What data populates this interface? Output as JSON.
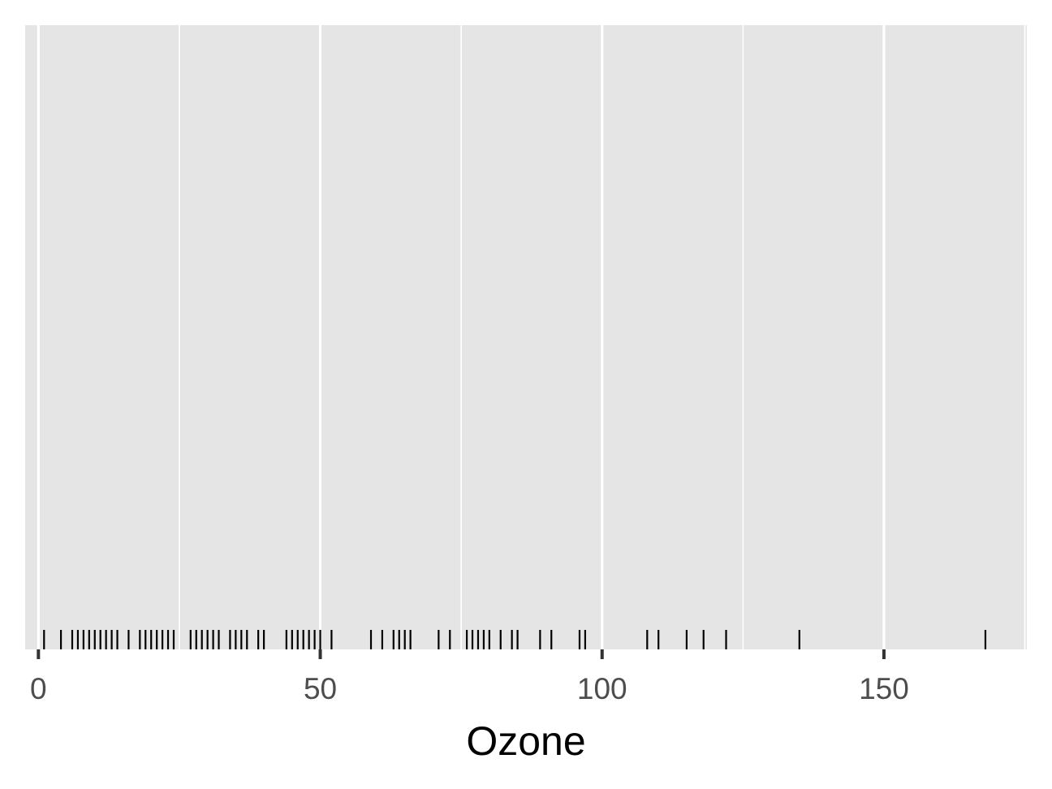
{
  "chart_data": {
    "type": "rug",
    "title": "",
    "xlabel": "Ozone",
    "ylabel": "",
    "xlim": [
      -2.35,
      175.35
    ],
    "x_ticks": [
      0,
      50,
      100,
      150
    ],
    "x_tick_labels": [
      "0",
      "50",
      "100",
      "150"
    ],
    "grid": true,
    "legend": "none",
    "colors": {
      "panel": "#e5e5e5",
      "grid": "#ffffff",
      "mark": "#000000",
      "tick_label": "#4d4d4d",
      "axis_tick": "#333333"
    },
    "values": [
      1,
      4,
      6,
      7,
      8,
      9,
      10,
      11,
      12,
      13,
      14,
      16,
      18,
      19,
      20,
      21,
      22,
      23,
      24,
      27,
      28,
      29,
      30,
      31,
      32,
      34,
      35,
      36,
      37,
      39,
      40,
      44,
      45,
      46,
      47,
      48,
      49,
      50,
      52,
      59,
      61,
      63,
      64,
      65,
      66,
      71,
      73,
      76,
      77,
      78,
      79,
      80,
      82,
      84,
      85,
      89,
      91,
      96,
      97,
      108,
      110,
      115,
      118,
      122,
      135,
      168
    ]
  }
}
